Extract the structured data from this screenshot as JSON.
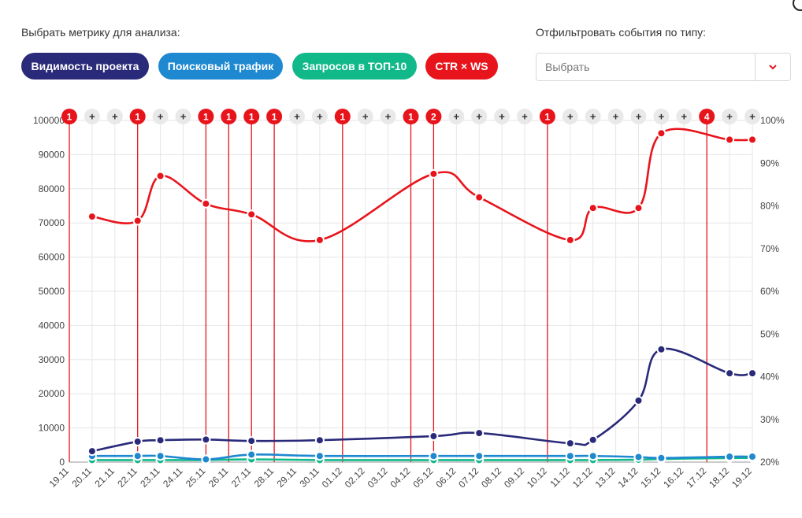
{
  "metric_label": "Выбрать метрику для анализа:",
  "filter_label": "Отфильтровать события по типу:",
  "metric_buttons": [
    {
      "label": "Видимость проекта",
      "color": "#2a2a7a"
    },
    {
      "label": "Поисковый трафик",
      "color": "#1e88d0"
    },
    {
      "label": "Запросов в ТОП-10",
      "color": "#11b98a"
    },
    {
      "label": "CTR × WS",
      "color": "#e8141c"
    }
  ],
  "filter_select": {
    "placeholder": "Выбрать",
    "arrow_icon": "chevron-down-icon",
    "arrow_color": "#e8141c"
  },
  "chart_data": {
    "type": "line",
    "categories": [
      "19.11",
      "20.11",
      "21.11",
      "22.11",
      "23.11",
      "24.11",
      "25.11",
      "26.11",
      "27.11",
      "28.11",
      "29.11",
      "30.11",
      "01.12",
      "02.12",
      "03.12",
      "04.12",
      "05.12",
      "06.12",
      "07.12",
      "08.12",
      "09.12",
      "10.12",
      "11.12",
      "12.12",
      "13.12",
      "14.12",
      "15.12",
      "16.12",
      "17.12",
      "18.12",
      "19.12"
    ],
    "y_left": {
      "ticks": [
        "0",
        "10000",
        "20000",
        "30000",
        "40000",
        "50000",
        "60000",
        "70000",
        "80000",
        "90000",
        "100000"
      ],
      "ylim": [
        0,
        100000
      ]
    },
    "y_right": {
      "ticks": [
        "20%",
        "30%",
        "40%",
        "50%",
        "60%",
        "70%",
        "80%",
        "90%",
        "100%"
      ],
      "ylim": [
        20,
        100
      ]
    },
    "grid": true,
    "series": [
      {
        "axis": "left",
        "color": "#2a2a7a",
        "points": [
          [
            1,
            3200
          ],
          [
            3,
            6000
          ],
          [
            4,
            6400
          ],
          [
            6,
            6600
          ],
          [
            8,
            6200
          ],
          [
            11,
            6400
          ],
          [
            16,
            7600
          ],
          [
            18,
            8500
          ],
          [
            22,
            5500
          ],
          [
            23,
            6500
          ],
          [
            25,
            18000
          ],
          [
            26,
            33000
          ],
          [
            29,
            26000
          ],
          [
            30,
            26000
          ]
        ]
      },
      {
        "axis": "left",
        "color": "#1e88d0",
        "points": [
          [
            1,
            1800
          ],
          [
            3,
            1800
          ],
          [
            4,
            1800
          ],
          [
            6,
            800
          ],
          [
            8,
            2200
          ],
          [
            11,
            1800
          ],
          [
            16,
            1800
          ],
          [
            18,
            1800
          ],
          [
            22,
            1800
          ],
          [
            23,
            1800
          ],
          [
            25,
            1500
          ],
          [
            26,
            1200
          ],
          [
            29,
            1600
          ],
          [
            30,
            1600
          ]
        ]
      },
      {
        "axis": "left",
        "color": "#11b98a",
        "points": [
          [
            1,
            600
          ],
          [
            3,
            600
          ],
          [
            4,
            600
          ],
          [
            6,
            600
          ],
          [
            8,
            800
          ],
          [
            11,
            600
          ],
          [
            16,
            600
          ],
          [
            18,
            600
          ],
          [
            22,
            600
          ],
          [
            23,
            600
          ],
          [
            25,
            700
          ],
          [
            26,
            900
          ],
          [
            29,
            1200
          ],
          [
            30,
            1200
          ]
        ]
      },
      {
        "axis": "right",
        "color": "#e8141c",
        "points": [
          [
            1,
            77.5
          ],
          [
            3,
            76.5
          ],
          [
            4,
            87
          ],
          [
            6,
            80.5
          ],
          [
            8,
            78
          ],
          [
            11,
            72
          ],
          [
            16,
            87.5
          ],
          [
            18,
            82
          ],
          [
            22,
            72
          ],
          [
            23,
            79.5
          ],
          [
            25,
            79.5
          ],
          [
            26,
            97
          ],
          [
            29,
            95.5
          ],
          [
            30,
            95.5
          ]
        ]
      }
    ],
    "events": [
      {
        "index": 0,
        "count": "1"
      },
      {
        "index": 3,
        "count": "1"
      },
      {
        "index": 6,
        "count": "1"
      },
      {
        "index": 7,
        "count": "1"
      },
      {
        "index": 8,
        "count": "1"
      },
      {
        "index": 9,
        "count": "1"
      },
      {
        "index": 12,
        "count": "1"
      },
      {
        "index": 15,
        "count": "1"
      },
      {
        "index": 16,
        "count": "2"
      },
      {
        "index": 21,
        "count": "1"
      },
      {
        "index": 28,
        "count": "4"
      }
    ],
    "add_marker_label": "+",
    "event_color": "#e8141c"
  }
}
